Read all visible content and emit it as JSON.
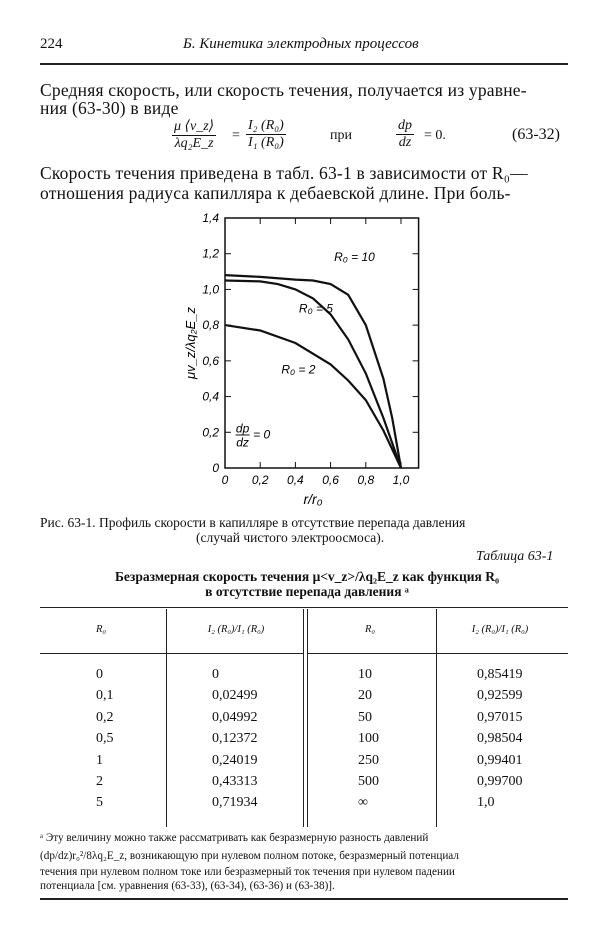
{
  "header": {
    "page_number": "224",
    "running_title": "Б. Кинетика электродных процессов"
  },
  "paragraph1": {
    "line1": "Средняя скорость, или скорость течения, получается из уравне-",
    "line2": "ния (63-30) в виде"
  },
  "equation": {
    "lhs_num": "μ ⟨v_z⟩",
    "lhs_den": "λq₂E_z",
    "rhs_num": "I₂ (R₀)",
    "rhs_den": "I₁ (R₀)",
    "condition_word": "при",
    "cond_num": "dp",
    "cond_den": "dz",
    "cond_value": "= 0.",
    "number": "(63-32)"
  },
  "paragraph2": {
    "line1": "Скорость течения приведена в табл. 63-1 в зависимости от R₀—",
    "line2": "отношения радиуса капилляра к дебаевской длине. При боль-"
  },
  "chart_data": {
    "type": "line",
    "xlabel": "r/r₀",
    "ylabel": "μv_z/λq₂E_z",
    "xlim": [
      0,
      1.1
    ],
    "ylim": [
      0,
      1.4
    ],
    "x_ticks": [
      "0",
      "0,2",
      "0,4",
      "0,6",
      "0,8",
      "1,0"
    ],
    "y_ticks": [
      "0",
      "0,2",
      "0,4",
      "0,6",
      "0,8",
      "1,0",
      "1,2",
      "1,4"
    ],
    "grid": false,
    "annotation": {
      "num": "dp",
      "den": "dz",
      "value": "= 0"
    },
    "series": [
      {
        "name": "R₀ = 10",
        "points": [
          [
            0,
            1.08
          ],
          [
            0.2,
            1.07
          ],
          [
            0.4,
            1.055
          ],
          [
            0.5,
            1.05
          ],
          [
            0.6,
            1.03
          ],
          [
            0.7,
            0.97
          ],
          [
            0.8,
            0.8
          ],
          [
            0.9,
            0.5
          ],
          [
            0.95,
            0.28
          ],
          [
            1.0,
            0
          ]
        ]
      },
      {
        "name": "R₀ = 5",
        "points": [
          [
            0,
            1.05
          ],
          [
            0.2,
            1.045
          ],
          [
            0.3,
            1.03
          ],
          [
            0.4,
            1.0
          ],
          [
            0.5,
            0.95
          ],
          [
            0.6,
            0.86
          ],
          [
            0.7,
            0.72
          ],
          [
            0.8,
            0.53
          ],
          [
            0.9,
            0.28
          ],
          [
            1.0,
            0
          ]
        ]
      },
      {
        "name": "R₀ = 2",
        "points": [
          [
            0,
            0.8
          ],
          [
            0.2,
            0.77
          ],
          [
            0.4,
            0.7
          ],
          [
            0.6,
            0.58
          ],
          [
            0.7,
            0.49
          ],
          [
            0.8,
            0.38
          ],
          [
            0.9,
            0.21
          ],
          [
            1.0,
            0
          ]
        ]
      }
    ]
  },
  "figure_caption": {
    "line1": "Рис. 63-1. Профиль скорости в капилляре в отсутствие перепада давления",
    "line2": "(случай чистого электроосмоса)."
  },
  "table": {
    "label": "Таблица 63-1",
    "title_line1": "Безразмерная скорость течения μ<v_z>/λq₂E_z как функция R₀",
    "title_line2": "в отсутствие перепада давления ᵃ",
    "headers": [
      "R₀",
      "I₂ (R₀)/I₁ (R₀)",
      "R₀",
      "I₂ (R₀)/I₁ (R₀)"
    ],
    "rows": [
      [
        "0",
        "0",
        "10",
        "0,85419"
      ],
      [
        "0,1",
        "0,02499",
        "20",
        "0,92599"
      ],
      [
        "0,2",
        "0,04992",
        "50",
        "0,97015"
      ],
      [
        "0,5",
        "0,12372",
        "100",
        "0,98504"
      ],
      [
        "1",
        "0,24019",
        "250",
        "0,99401"
      ],
      [
        "2",
        "0,43313",
        "500",
        "0,99700"
      ],
      [
        "5",
        "0,71934",
        "∞",
        "1,0"
      ]
    ]
  },
  "footnote": {
    "line1": "ᵃ Эту величину можно также рассматривать как безразмерную разность давлений",
    "line2": "(dp/dz)r₀²/8λq₂E_z, возникающую при нулевом полном потоке, безразмерный потенциал",
    "line3": "течения при нулевом полном токе или безразмерный ток течения при нулевом падении",
    "line4": "потенциала [см. уравнения (63-33), (63-34), (63-36) и (63-38)]."
  }
}
